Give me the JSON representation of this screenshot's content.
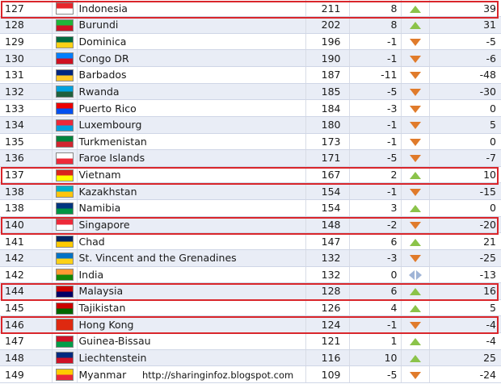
{
  "colors": {
    "highlight": "#d9262b",
    "up": "#8bc34a",
    "down": "#e07b2b",
    "row_alt": "#e9edf6"
  },
  "watermark": "http://sharinginfoz.blogspot.com",
  "rows": [
    {
      "rank": "127",
      "country": "Indonesia",
      "points": "211",
      "change": "8",
      "trend": "up",
      "prev": "39",
      "flag": [
        "#e8262b",
        "#ffffff"
      ],
      "highlight": true
    },
    {
      "rank": "128",
      "country": "Burundi",
      "points": "202",
      "change": "8",
      "trend": "up",
      "prev": "31",
      "flag": [
        "#1eb53a",
        "#ce1126"
      ],
      "highlight": false
    },
    {
      "rank": "129",
      "country": "Dominica",
      "points": "196",
      "change": "-1",
      "trend": "down",
      "prev": "-5",
      "flag": [
        "#006b3f",
        "#fcd116"
      ],
      "highlight": false
    },
    {
      "rank": "130",
      "country": "Congo DR",
      "points": "190",
      "change": "-1",
      "trend": "down",
      "prev": "-6",
      "flag": [
        "#007fff",
        "#ce1021"
      ],
      "highlight": false
    },
    {
      "rank": "131",
      "country": "Barbados",
      "points": "187",
      "change": "-11",
      "trend": "down",
      "prev": "-48",
      "flag": [
        "#00267f",
        "#ffc726"
      ],
      "highlight": false
    },
    {
      "rank": "132",
      "country": "Rwanda",
      "points": "185",
      "change": "-5",
      "trend": "down",
      "prev": "-30",
      "flag": [
        "#00a1de",
        "#20603d"
      ],
      "highlight": false
    },
    {
      "rank": "133",
      "country": "Puerto Rico",
      "points": "184",
      "change": "-3",
      "trend": "down",
      "prev": "0",
      "flag": [
        "#ed0000",
        "#0050f0"
      ],
      "highlight": false
    },
    {
      "rank": "134",
      "country": "Luxembourg",
      "points": "180",
      "change": "-1",
      "trend": "down",
      "prev": "5",
      "flag": [
        "#ed2939",
        "#00a1de"
      ],
      "highlight": false
    },
    {
      "rank": "135",
      "country": "Turkmenistan",
      "points": "173",
      "change": "-1",
      "trend": "down",
      "prev": "0",
      "flag": [
        "#00843d",
        "#d22630"
      ],
      "highlight": false
    },
    {
      "rank": "136",
      "country": "Faroe Islands",
      "points": "171",
      "change": "-5",
      "trend": "down",
      "prev": "-7",
      "flag": [
        "#ffffff",
        "#ed2939"
      ],
      "highlight": false
    },
    {
      "rank": "137",
      "country": "Vietnam",
      "points": "167",
      "change": "2",
      "trend": "up",
      "prev": "10",
      "flag": [
        "#da251d",
        "#ffff00"
      ],
      "highlight": true
    },
    {
      "rank": "138",
      "country": "Kazakhstan",
      "points": "154",
      "change": "-1",
      "trend": "down",
      "prev": "-15",
      "flag": [
        "#00afca",
        "#fec50c"
      ],
      "highlight": false
    },
    {
      "rank": "138",
      "country": "Namibia",
      "points": "154",
      "change": "3",
      "trend": "up",
      "prev": "0",
      "flag": [
        "#003580",
        "#009543"
      ],
      "highlight": false
    },
    {
      "rank": "140",
      "country": "Singapore",
      "points": "148",
      "change": "-2",
      "trend": "down",
      "prev": "-20",
      "flag": [
        "#ed2939",
        "#ffffff"
      ],
      "highlight": true
    },
    {
      "rank": "141",
      "country": "Chad",
      "points": "147",
      "change": "6",
      "trend": "up",
      "prev": "21",
      "flag": [
        "#002664",
        "#fecb00"
      ],
      "highlight": false
    },
    {
      "rank": "142",
      "country": "St. Vincent and the Grenadines",
      "points": "132",
      "change": "-3",
      "trend": "down",
      "prev": "-25",
      "flag": [
        "#0072c6",
        "#fcd116"
      ],
      "highlight": false
    },
    {
      "rank": "142",
      "country": "India",
      "points": "132",
      "change": "0",
      "trend": "same",
      "prev": "-13",
      "flag": [
        "#ff9933",
        "#138808"
      ],
      "highlight": false
    },
    {
      "rank": "144",
      "country": "Malaysia",
      "points": "128",
      "change": "6",
      "trend": "up",
      "prev": "16",
      "flag": [
        "#cc0001",
        "#010066"
      ],
      "highlight": true
    },
    {
      "rank": "145",
      "country": "Tajikistan",
      "points": "126",
      "change": "4",
      "trend": "up",
      "prev": "5",
      "flag": [
        "#cc0000",
        "#006600"
      ],
      "highlight": false
    },
    {
      "rank": "146",
      "country": "Hong Kong",
      "points": "124",
      "change": "-1",
      "trend": "down",
      "prev": "-4",
      "flag": [
        "#de2910",
        "#de2910"
      ],
      "highlight": true
    },
    {
      "rank": "147",
      "country": "Guinea-Bissau",
      "points": "121",
      "change": "1",
      "trend": "up",
      "prev": "-4",
      "flag": [
        "#ce1126",
        "#009e49"
      ],
      "highlight": false
    },
    {
      "rank": "148",
      "country": "Liechtenstein",
      "points": "116",
      "change": "10",
      "trend": "up",
      "prev": "25",
      "flag": [
        "#002b7f",
        "#ce1126"
      ],
      "highlight": false
    },
    {
      "rank": "149",
      "country": "Myanmar",
      "points": "109",
      "change": "-5",
      "trend": "down",
      "prev": "-24",
      "flag": [
        "#fecb00",
        "#ea2839"
      ],
      "highlight": false
    }
  ]
}
